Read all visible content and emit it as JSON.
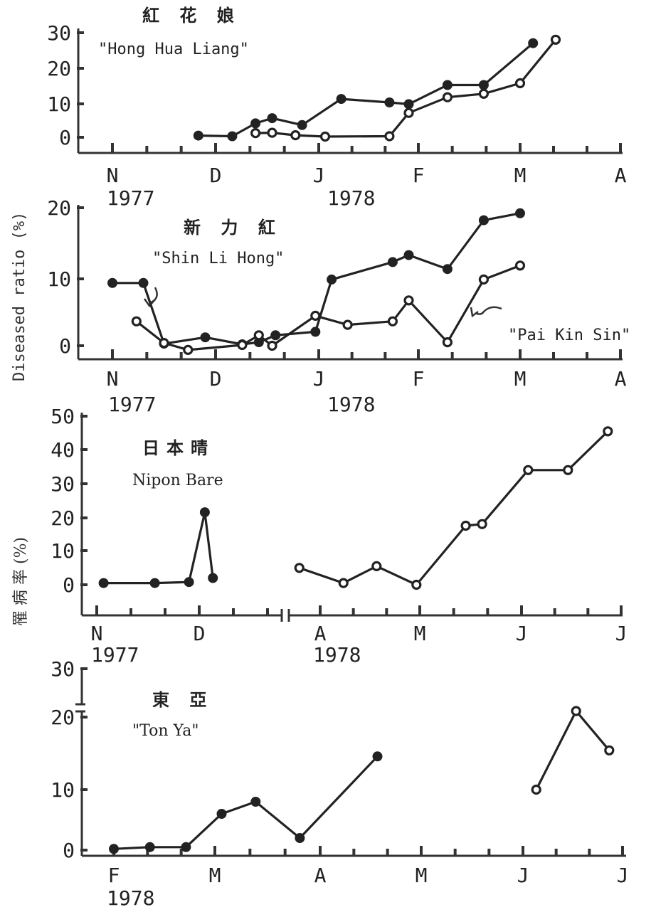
{
  "y_axis_label": "Diseased ratio (%)",
  "y_axis_label_cn": "罹 病 率 (%)",
  "chart_data": [
    {
      "type": "line",
      "title_cn": "紅 花 娘",
      "title": "\"Hong Hua Liang\"",
      "x_tick_labels": [
        "N",
        "D",
        "J",
        "F",
        "M",
        "A"
      ],
      "year_labels": [
        "1977",
        "1978"
      ],
      "y_tick_labels": [
        "30",
        "20",
        "10",
        "0"
      ],
      "ylim": [
        0,
        30
      ],
      "xlim": [
        "Nov 1977",
        "Apr 1978"
      ],
      "series": [
        {
          "marker": "filled",
          "x": [
            "1977-11-26",
            "1977-12-06",
            "1977-12-13",
            "1977-12-18",
            "1977-12-27",
            "1978-01-08",
            "1978-01-23",
            "1978-01-29",
            "1978-02-09",
            "1978-02-19",
            "1978-03-05"
          ],
          "y": [
            0.5,
            0.3,
            4,
            5.5,
            3.5,
            11,
            10,
            9.5,
            15,
            15,
            27
          ]
        },
        {
          "marker": "open",
          "x": [
            "1977-12-13",
            "1977-12-18",
            "1977-12-25",
            "1978-01-03",
            "1978-01-23",
            "1978-01-29",
            "1978-02-09",
            "1978-02-19",
            "1978-03-01",
            "1978-03-12"
          ],
          "y": [
            1.2,
            1.3,
            0.6,
            0.2,
            0.3,
            7,
            11.5,
            12.5,
            15.5,
            28
          ]
        }
      ]
    },
    {
      "type": "line",
      "title_cn": "新 力 紅",
      "title": "\"Shin Li Hong\"",
      "annotation": "\"Pai Kin Sin\"",
      "x_tick_labels": [
        "N",
        "D",
        "J",
        "F",
        "M",
        "A"
      ],
      "year_labels": [
        "1977",
        "1978"
      ],
      "y_tick_labels": [
        "20",
        "10",
        "0"
      ],
      "ylim": [
        0,
        20
      ],
      "xlim": [
        "Nov 1977",
        "Apr 1978"
      ],
      "series": [
        {
          "marker": "filled",
          "x": [
            "1977-11-01",
            "1977-11-10",
            "1977-11-16",
            "1977-11-28",
            "1977-12-09",
            "1977-12-14",
            "1977-12-19",
            "1977-12-31",
            "1978-01-05",
            "1978-01-24",
            "1978-01-29",
            "1978-02-09",
            "1978-02-19",
            "1978-03-01"
          ],
          "y": [
            9,
            9,
            0.3,
            1.2,
            0.2,
            0.5,
            1.5,
            2,
            9.5,
            12,
            13,
            11,
            18,
            19
          ]
        },
        {
          "marker": "open",
          "x": [
            "1977-11-08",
            "1977-11-16",
            "1977-11-23",
            "1977-12-09",
            "1977-12-14",
            "1977-12-18",
            "1977-12-31",
            "1978-01-10",
            "1978-01-24",
            "1978-01-29",
            "1978-02-09",
            "1978-02-19",
            "1978-03-01"
          ],
          "y": [
            3.5,
            0.4,
            -0.6,
            0.1,
            1.5,
            0,
            4.3,
            3,
            3.5,
            6.5,
            0.5,
            9.5,
            11.5
          ]
        }
      ]
    },
    {
      "type": "line",
      "title_cn": "日本晴",
      "title": "Nipon Bare",
      "x_tick_labels": [
        "N",
        "D",
        "A",
        "M",
        "J",
        "J"
      ],
      "year_labels": [
        "1977",
        "1978"
      ],
      "y_tick_labels": [
        "50",
        "40",
        "30",
        "20",
        "10",
        "0"
      ],
      "ylim": [
        0,
        50
      ],
      "axis_break": true,
      "series": [
        {
          "marker": "filled",
          "x": [
            "1977-11-03",
            "1977-11-18",
            "1977-11-28",
            "1977-12-08",
            "1977-12-18"
          ],
          "y": [
            0.5,
            0.5,
            0.8,
            21.5,
            2
          ]
        },
        {
          "marker": "open",
          "x": [
            "1978-03-25",
            "1978-04-08",
            "1978-04-18",
            "1978-04-30",
            "1978-05-15",
            "1978-05-20",
            "1978-06-03",
            "1978-06-15",
            "1978-06-27"
          ],
          "y": [
            5,
            0.5,
            5.5,
            0,
            17.5,
            18,
            34,
            34,
            45.5
          ]
        }
      ]
    },
    {
      "type": "line",
      "title_cn": "東 亞",
      "title": "\"Ton Ya\"",
      "x_tick_labels": [
        "F",
        "M",
        "A",
        "M",
        "J",
        "J"
      ],
      "year_labels": [
        "1978"
      ],
      "y_tick_labels": [
        "30",
        "20",
        "10",
        "0"
      ],
      "ylim": [
        0,
        30
      ],
      "axis_break": true,
      "series": [
        {
          "marker": "filled",
          "x": [
            "1978-02-01",
            "1978-02-11",
            "1978-02-21",
            "1978-03-03",
            "1978-03-13",
            "1978-03-26",
            "1978-04-18"
          ],
          "y": [
            0.2,
            0.5,
            0.5,
            6,
            8,
            2,
            15.5
          ]
        },
        {
          "marker": "open",
          "x": [
            "1978-06-05",
            "1978-06-17",
            "1978-06-27"
          ],
          "y": [
            10,
            23,
            16.5
          ]
        }
      ]
    }
  ]
}
